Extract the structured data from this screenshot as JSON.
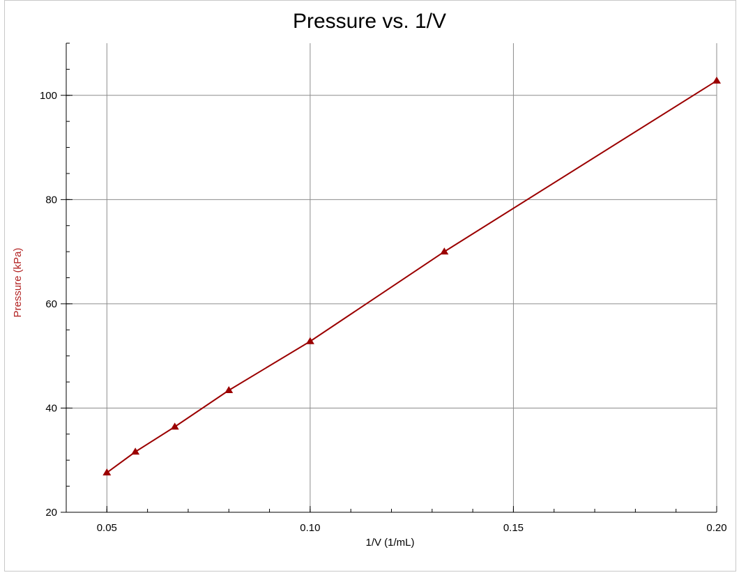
{
  "chart_data": {
    "type": "line",
    "title": "Pressure vs. 1/V",
    "xlabel": "1/V (1/mL)",
    "ylabel": "Pressure (kPa)",
    "xlim": [
      0.04,
      0.2
    ],
    "ylim": [
      20,
      110
    ],
    "x_ticks": [
      0.05,
      0.1,
      0.15,
      0.2
    ],
    "x_tick_labels": [
      "0.05",
      "0.10",
      "0.15",
      "0.20"
    ],
    "y_ticks": [
      20,
      40,
      60,
      80,
      100
    ],
    "y_tick_labels": [
      "20",
      "40",
      "60",
      "80",
      "100"
    ],
    "x_minor_step": 0.01,
    "y_minor_step": 5,
    "grid": true,
    "marker": "triangle",
    "series": [
      {
        "color": "#9b0000",
        "x": [
          0.05,
          0.057,
          0.0667,
          0.08,
          0.1,
          0.133,
          0.2
        ],
        "y": [
          27.6,
          31.6,
          36.4,
          43.4,
          52.8,
          70.0,
          102.8
        ]
      }
    ]
  },
  "colors": {
    "series": "#9b0000",
    "ylabel": "#b22222",
    "grid": "#8c8c8c",
    "axis": "#000000"
  }
}
